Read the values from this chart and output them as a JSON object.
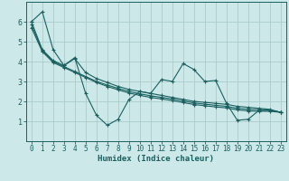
{
  "xlabel": "Humidex (Indice chaleur)",
  "bg_color": "#cce8e8",
  "grid_color": "#aacccc",
  "line_color": "#1a6060",
  "xlim": [
    -0.5,
    23.5
  ],
  "ylim": [
    0,
    7
  ],
  "yticks": [
    1,
    2,
    3,
    4,
    5,
    6
  ],
  "xticks": [
    0,
    1,
    2,
    3,
    4,
    5,
    6,
    7,
    8,
    9,
    10,
    11,
    12,
    13,
    14,
    15,
    16,
    17,
    18,
    19,
    20,
    21,
    22,
    23
  ],
  "series": [
    {
      "x": [
        0,
        1,
        2,
        3,
        4,
        5,
        6,
        7,
        8,
        9,
        10,
        11,
        12,
        13,
        14,
        15,
        16,
        17,
        18,
        19,
        20,
        21,
        22,
        23
      ],
      "y": [
        6.0,
        6.5,
        4.6,
        3.8,
        4.2,
        2.4,
        1.3,
        0.8,
        1.1,
        2.1,
        2.5,
        2.4,
        3.1,
        3.0,
        3.9,
        3.6,
        3.0,
        3.05,
        1.9,
        1.05,
        1.1,
        1.55,
        1.55,
        1.45
      ]
    },
    {
      "x": [
        0,
        1,
        2,
        3,
        4,
        5,
        6,
        7,
        8,
        9,
        10,
        11,
        12,
        13,
        14,
        15,
        16,
        17,
        18,
        19,
        20,
        21,
        22,
        23
      ],
      "y": [
        6.0,
        4.6,
        4.05,
        3.8,
        4.15,
        3.45,
        3.15,
        2.95,
        2.75,
        2.6,
        2.5,
        2.4,
        2.3,
        2.2,
        2.1,
        2.0,
        1.95,
        1.9,
        1.85,
        1.75,
        1.7,
        1.65,
        1.6,
        1.45
      ]
    },
    {
      "x": [
        0,
        1,
        2,
        3,
        4,
        5,
        6,
        7,
        8,
        9,
        10,
        11,
        12,
        13,
        14,
        15,
        16,
        17,
        18,
        19,
        20,
        21,
        22,
        23
      ],
      "y": [
        5.85,
        4.55,
        4.0,
        3.75,
        3.5,
        3.25,
        3.0,
        2.82,
        2.65,
        2.5,
        2.38,
        2.28,
        2.2,
        2.12,
        2.02,
        1.92,
        1.86,
        1.8,
        1.75,
        1.65,
        1.6,
        1.58,
        1.56,
        1.45
      ]
    },
    {
      "x": [
        0,
        1,
        2,
        3,
        4,
        5,
        6,
        7,
        8,
        9,
        10,
        11,
        12,
        13,
        14,
        15,
        16,
        17,
        18,
        19,
        20,
        21,
        22,
        23
      ],
      "y": [
        5.7,
        4.5,
        3.95,
        3.7,
        3.45,
        3.2,
        2.95,
        2.75,
        2.58,
        2.42,
        2.3,
        2.2,
        2.12,
        2.04,
        1.94,
        1.84,
        1.78,
        1.72,
        1.67,
        1.57,
        1.52,
        1.5,
        1.5,
        1.45
      ]
    }
  ]
}
